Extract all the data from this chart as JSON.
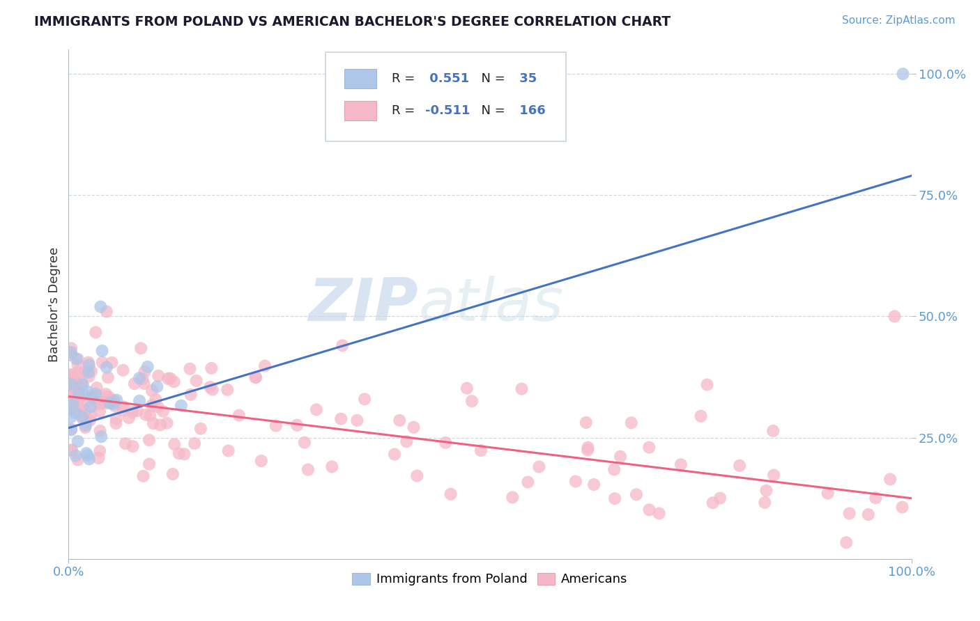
{
  "title": "IMMIGRANTS FROM POLAND VS AMERICAN BACHELOR'S DEGREE CORRELATION CHART",
  "source_text": "Source: ZipAtlas.com",
  "ylabel": "Bachelor's Degree",
  "legend_blue_label": "Immigrants from Poland",
  "legend_pink_label": "Americans",
  "R_blue": 0.551,
  "N_blue": 35,
  "R_pink": -0.511,
  "N_pink": 166,
  "blue_color": "#aec6e8",
  "pink_color": "#f5b8c8",
  "blue_line_color": "#4472C4",
  "pink_line_color": "#F06080",
  "watermark_color": "#dce8f5",
  "title_color": "#1a1a2e",
  "source_color": "#5b9bd5",
  "tick_color": "#5b9bd5",
  "grid_color": "#d0d8e0",
  "blue_line_start_y": 0.27,
  "blue_line_end_y": 0.79,
  "pink_line_start_y": 0.335,
  "pink_line_end_y": 0.125,
  "xlim": [
    0.0,
    1.0
  ],
  "ylim": [
    0.0,
    1.0
  ],
  "background_color": "#ffffff"
}
